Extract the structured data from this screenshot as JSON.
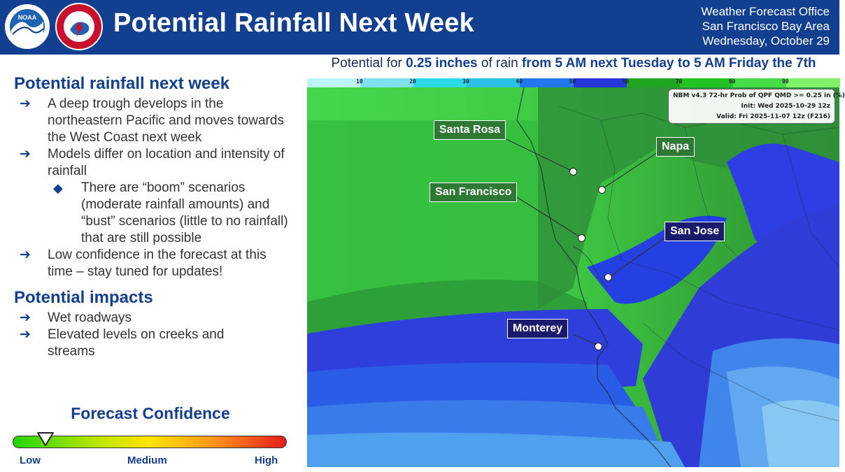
{
  "header": {
    "title": "Potential Rainfall Next Week",
    "office_line1": "Weather Forecast Office",
    "office_line2": "San Francisco Bay Area",
    "office_line3": "Wednesday, October 29",
    "logos": [
      "noaa-logo",
      "national-weather-service-logo"
    ],
    "background_color": "#123f8f"
  },
  "subtitle": {
    "part1": "Potential for ",
    "part2": "0.25 inches",
    "part3": " of rain ",
    "part4": "from 5 AM next Tuesday to 5 AM Friday the 7th"
  },
  "left_panel": {
    "section1": {
      "heading": "Potential rainfall next week",
      "bullets": [
        "A deep trough develops in the northeastern Pacific and moves towards the West Coast next week",
        "Models differ on location and intensity of rainfall"
      ],
      "sub_bullet": "There are “boom” scenarios (moderate rainfall amounts) and “bust” scenarios (little to no rainfall) that are still possible",
      "bullet3": "Low confidence in the forecast at this time – stay tuned for updates!"
    },
    "section2": {
      "heading": "Potential impacts",
      "bullets": [
        "Wet roadways",
        "Elevated levels on creeks and streams"
      ]
    },
    "confidence": {
      "title": "Forecast Confidence",
      "low": "Low",
      "medium": "Medium",
      "high": "High",
      "level": 0.12
    }
  },
  "map": {
    "scale_ticks": [
      "10",
      "20",
      "30",
      "40",
      "50",
      "60",
      "70",
      "80",
      "90"
    ],
    "scale_colors": [
      "#7fe0f0",
      "#2bd9e8",
      "#2cc0e6",
      "#2478ec",
      "#2736d8",
      "#1fa51f",
      "#24c224",
      "#48db48",
      "#7ff06a"
    ],
    "info": {
      "line1": "NBM v4.3 72-hr Prob of QPF QMD >= 0.25 in (%)",
      "line2": "Init: Wed 2025-10-29 12z",
      "line3": "Valid: Fri 2025-11-07 12z (F216)"
    },
    "cities": {
      "santa_rosa": "Santa Rosa",
      "napa": "Napa",
      "san_francisco": "San Francisco",
      "san_jose": "San Jose",
      "monterey": "Monterey"
    }
  }
}
